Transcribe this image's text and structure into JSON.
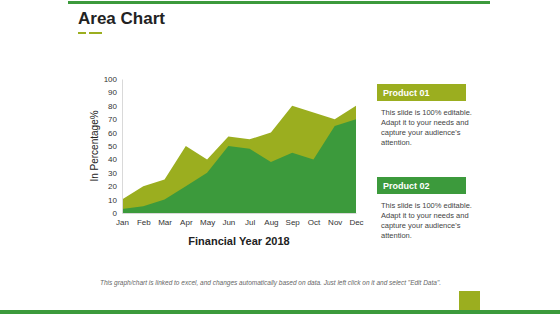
{
  "chart_data": {
    "type": "area",
    "title": "Area Chart",
    "x_label": "Financial Year 2018",
    "y_label": "In Percentage%",
    "categories": [
      "Jan",
      "Feb",
      "Mar",
      "Apr",
      "May",
      "Jun",
      "Jul",
      "Aug",
      "Sep",
      "Oct",
      "Nov",
      "Dec"
    ],
    "series": [
      {
        "name": "Product 01",
        "color": "#9bae1f",
        "values": [
          10,
          20,
          25,
          50,
          40,
          57,
          55,
          60,
          80,
          75,
          70,
          80
        ]
      },
      {
        "name": "Product 02",
        "color": "#3c9a3c",
        "values": [
          3,
          5,
          10,
          20,
          30,
          50,
          48,
          38,
          45,
          40,
          65,
          70
        ]
      }
    ],
    "ylim": [
      0,
      100
    ],
    "yticks": [
      0,
      10,
      20,
      30,
      40,
      50,
      60,
      70,
      80,
      90,
      100
    ],
    "grid": false,
    "stacked": false,
    "legend": "right",
    "annotations": [
      "This slide is 100% editable. Adapt it to your needs and capture your audience's attention.",
      "This slide is 100% editable. Adapt it to your needs and capture your audience's attention.",
      "This graph/chart is linked to excel, and changes automatically based on data. Just left click on it and select \"Edit Data\"."
    ]
  }
}
